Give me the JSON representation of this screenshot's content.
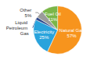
{
  "chart_data": {
    "type": "pie",
    "categories": [
      "Natural Gas",
      "Electricity",
      "Liquid Petroleum Gas",
      "Other",
      "Fuel Oil"
    ],
    "values": [
      57,
      25,
      2,
      5,
      11
    ],
    "value_labels": [
      "57%",
      "25%",
      null,
      "5%",
      "11%"
    ],
    "colors": [
      "#f7941d",
      "#29a3dc",
      "#2e4a8c",
      "#9b9b9b",
      "#7ab648"
    ],
    "data_labels": true
  }
}
